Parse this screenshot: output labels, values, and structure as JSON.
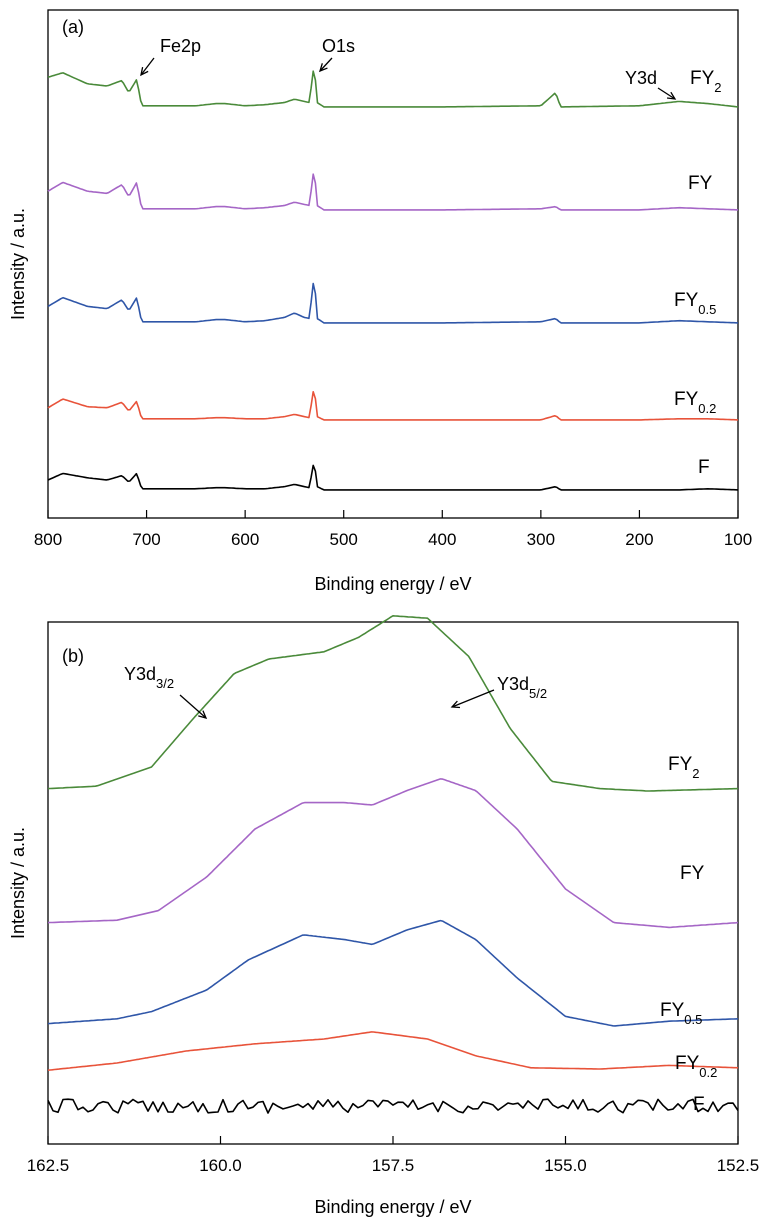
{
  "chart_data": [
    {
      "panel": "(a)",
      "type": "line",
      "xlabel": "Binding energy / eV",
      "ylabel": "Intensity / a.u.",
      "xlim": [
        800,
        100
      ],
      "x_reversed": true,
      "x_ticks": [
        "800",
        "700",
        "600",
        "500",
        "400",
        "300",
        "200",
        "100"
      ],
      "stacked_offsets": true,
      "annotations": [
        {
          "text": "Fe2p",
          "x": 710
        },
        {
          "text": "O1s",
          "x": 530
        },
        {
          "text": "Y3d",
          "x": 158
        }
      ],
      "series": [
        {
          "name": "F",
          "name_sub": "",
          "color": "#000000",
          "x": [
            800,
            785,
            760,
            740,
            725,
            718,
            710,
            705,
            700,
            650,
            630,
            620,
            600,
            580,
            560,
            550,
            540,
            535,
            530,
            527,
            520,
            500,
            450,
            400,
            300,
            285,
            280,
            200,
            160,
            130,
            100
          ],
          "y": [
            0.1,
            0.16,
            0.12,
            0.1,
            0.14,
            0.08,
            0.16,
            0.02,
            0.02,
            0.02,
            0.03,
            0.03,
            0.02,
            0.02,
            0.04,
            0.06,
            0.04,
            0.03,
            0.28,
            0.04,
            0.01,
            0.01,
            0.01,
            0.01,
            0.01,
            0.04,
            0.01,
            0.01,
            0.01,
            0.02,
            0.01
          ]
        },
        {
          "name": "FY",
          "name_sub": "0.2",
          "color": "#e8533a",
          "x": [
            800,
            785,
            760,
            740,
            725,
            718,
            710,
            705,
            700,
            650,
            630,
            620,
            600,
            580,
            560,
            550,
            540,
            535,
            530,
            527,
            520,
            500,
            450,
            400,
            300,
            285,
            280,
            200,
            160,
            130,
            100
          ],
          "y": [
            0.12,
            0.2,
            0.13,
            0.12,
            0.17,
            0.09,
            0.18,
            0.02,
            0.02,
            0.02,
            0.03,
            0.03,
            0.02,
            0.02,
            0.04,
            0.06,
            0.04,
            0.03,
            0.32,
            0.04,
            0.01,
            0.01,
            0.01,
            0.01,
            0.01,
            0.05,
            0.01,
            0.01,
            0.02,
            0.02,
            0.01
          ]
        },
        {
          "name": "FY",
          "name_sub": "0.5",
          "color": "#2f56a8",
          "x": [
            800,
            785,
            760,
            740,
            725,
            718,
            710,
            705,
            700,
            650,
            630,
            620,
            600,
            580,
            560,
            550,
            540,
            535,
            530,
            527,
            520,
            500,
            450,
            400,
            300,
            285,
            280,
            200,
            160,
            130,
            100
          ],
          "y": [
            0.16,
            0.24,
            0.16,
            0.14,
            0.22,
            0.12,
            0.24,
            0.02,
            0.02,
            0.02,
            0.04,
            0.04,
            0.02,
            0.03,
            0.06,
            0.1,
            0.06,
            0.05,
            0.44,
            0.05,
            0.01,
            0.01,
            0.01,
            0.01,
            0.02,
            0.05,
            0.01,
            0.01,
            0.03,
            0.02,
            0.01
          ]
        },
        {
          "name": "FY",
          "name_sub": "",
          "color": "#a566c6",
          "x": [
            800,
            785,
            760,
            740,
            725,
            718,
            710,
            705,
            700,
            650,
            630,
            620,
            600,
            580,
            560,
            550,
            540,
            535,
            530,
            527,
            520,
            500,
            450,
            400,
            300,
            285,
            280,
            200,
            160,
            130,
            100
          ],
          "y": [
            0.18,
            0.26,
            0.18,
            0.16,
            0.24,
            0.13,
            0.26,
            0.02,
            0.02,
            0.02,
            0.04,
            0.04,
            0.02,
            0.03,
            0.05,
            0.08,
            0.06,
            0.05,
            0.4,
            0.05,
            0.01,
            0.01,
            0.01,
            0.01,
            0.02,
            0.04,
            0.01,
            0.01,
            0.03,
            0.02,
            0.01
          ]
        },
        {
          "name": "FY",
          "name_sub": "2",
          "color": "#4a8a3a",
          "x": [
            800,
            785,
            760,
            740,
            725,
            718,
            710,
            705,
            700,
            650,
            630,
            620,
            600,
            580,
            560,
            550,
            540,
            535,
            530,
            527,
            520,
            500,
            450,
            400,
            300,
            285,
            280,
            200,
            160,
            130,
            100
          ],
          "y": [
            0.28,
            0.32,
            0.22,
            0.2,
            0.25,
            0.14,
            0.26,
            0.02,
            0.02,
            0.02,
            0.04,
            0.04,
            0.02,
            0.03,
            0.05,
            0.08,
            0.06,
            0.05,
            0.4,
            0.05,
            0.01,
            0.01,
            0.01,
            0.01,
            0.02,
            0.14,
            0.01,
            0.02,
            0.06,
            0.04,
            0.01
          ]
        }
      ]
    },
    {
      "panel": "(b)",
      "type": "line",
      "xlabel": "Binding energy / eV",
      "ylabel": "Intensity / a.u.",
      "xlim": [
        162.5,
        152.5
      ],
      "x_reversed": true,
      "x_ticks": [
        "162.5",
        "160.0",
        "157.5",
        "155.0",
        "152.5"
      ],
      "stacked_offsets": true,
      "annotations": [
        {
          "text": "Y3d",
          "sub": "3/2",
          "x": 160.0
        },
        {
          "text": "Y3d",
          "sub": "5/2",
          "x": 156.8
        }
      ],
      "series": [
        {
          "name": "F",
          "name_sub": "",
          "color": "#000000",
          "noise": true,
          "x": [
            162.5,
            152.5
          ],
          "y": [
            0.0,
            0.0
          ]
        },
        {
          "name": "FY",
          "name_sub": "0.2",
          "color": "#e8533a",
          "x": [
            162.5,
            161.5,
            160.5,
            159.5,
            158.5,
            157.8,
            157.0,
            156.3,
            155.5,
            154.5,
            153.5,
            152.5
          ],
          "y": [
            0.04,
            0.1,
            0.2,
            0.26,
            0.3,
            0.36,
            0.3,
            0.16,
            0.06,
            0.05,
            0.08,
            0.06
          ]
        },
        {
          "name": "FY",
          "name_sub": "0.5",
          "color": "#2f56a8",
          "x": [
            162.5,
            161.5,
            161.0,
            160.2,
            159.6,
            158.8,
            158.2,
            157.8,
            157.3,
            156.8,
            156.3,
            155.7,
            155.0,
            154.3,
            153.5,
            152.5
          ],
          "y": [
            0.02,
            0.06,
            0.12,
            0.3,
            0.55,
            0.76,
            0.72,
            0.68,
            0.8,
            0.88,
            0.72,
            0.4,
            0.08,
            0.0,
            0.04,
            0.06
          ]
        },
        {
          "name": "FY",
          "name_sub": "",
          "color": "#a566c6",
          "x": [
            162.5,
            161.5,
            160.9,
            160.2,
            159.5,
            158.8,
            158.2,
            157.8,
            157.3,
            156.8,
            156.3,
            155.7,
            155.0,
            154.3,
            153.5,
            152.5
          ],
          "y": [
            0.02,
            0.04,
            0.12,
            0.4,
            0.8,
            1.02,
            1.02,
            1.0,
            1.12,
            1.22,
            1.12,
            0.8,
            0.3,
            0.02,
            -0.02,
            0.02
          ]
        },
        {
          "name": "FY",
          "name_sub": "2",
          "color": "#4a8a3a",
          "x": [
            162.5,
            161.8,
            161.0,
            160.4,
            159.8,
            159.3,
            158.5,
            158.0,
            157.5,
            157.0,
            156.4,
            155.8,
            155.2,
            154.5,
            153.8,
            152.5
          ],
          "y": [
            0.02,
            0.04,
            0.2,
            0.6,
            0.98,
            1.1,
            1.16,
            1.28,
            1.46,
            1.44,
            1.12,
            0.52,
            0.08,
            0.02,
            0.0,
            0.02
          ]
        }
      ]
    }
  ]
}
